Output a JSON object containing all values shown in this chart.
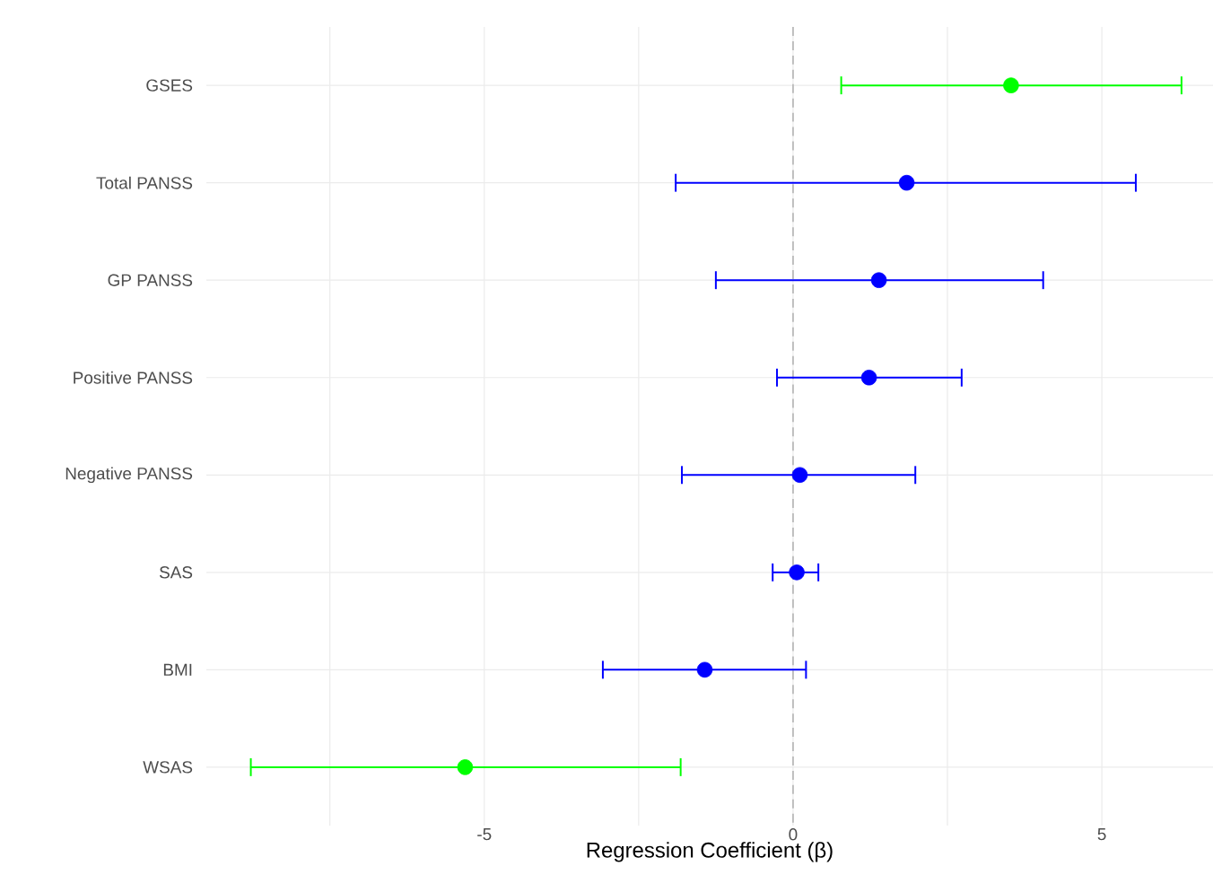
{
  "chart_data": {
    "type": "scatter",
    "orientation": "horizontal",
    "categories": [
      "GSES",
      "Total PANSS",
      "GP PANSS",
      "Positive PANSS",
      "Negative PANSS",
      "SAS",
      "BMI",
      "WSAS"
    ],
    "values": [
      3.53,
      1.84,
      1.39,
      1.23,
      0.11,
      0.06,
      -1.43,
      -5.31
    ],
    "errors": [
      [
        0.78,
        6.29
      ],
      [
        -1.9,
        5.55
      ],
      [
        -1.25,
        4.05
      ],
      [
        -0.26,
        2.73
      ],
      [
        -1.8,
        1.98
      ],
      [
        -0.33,
        0.41
      ],
      [
        -3.08,
        0.21
      ],
      [
        -8.78,
        -1.82
      ]
    ],
    "colors": [
      "#00ff00",
      "#0000ff",
      "#0000ff",
      "#0000ff",
      "#0000ff",
      "#0000ff",
      "#0000ff",
      "#00ff00"
    ],
    "marker": "circle",
    "xlim": [
      -9.5,
      6.8
    ],
    "xticks": [
      {
        "value": -7.5,
        "label": null
      },
      -5,
      {
        "value": -2.5,
        "label": null
      },
      0,
      {
        "value": 2.5,
        "label": null
      },
      5
    ],
    "xlabel": "Regression Coefficient (β)",
    "grid": true,
    "ref_lines": [
      {
        "axis": "x",
        "value": 0,
        "color": "#bbbbbb",
        "line_style": "dashed"
      }
    ]
  }
}
